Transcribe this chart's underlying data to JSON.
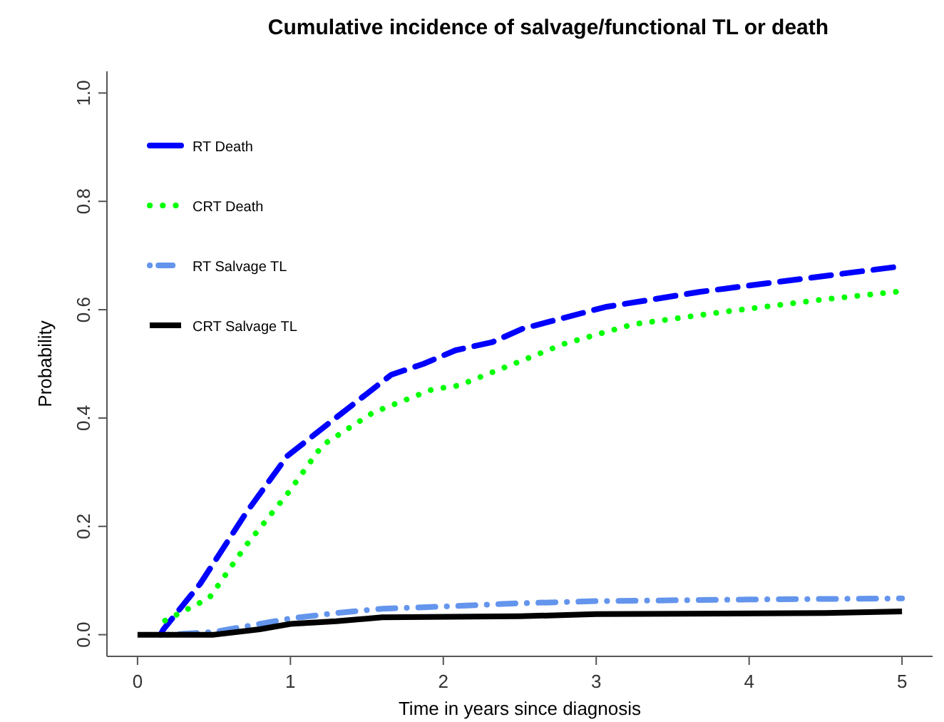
{
  "chart_data": {
    "type": "line",
    "title": "Cumulative incidence of salvage/functional TL or death",
    "xlabel": "Time in years since diagnosis",
    "ylabel": "Probability",
    "xlim": [
      -0.2,
      5.2
    ],
    "ylim": [
      -0.04,
      1.04
    ],
    "xticks": [
      0,
      1,
      2,
      3,
      4,
      5
    ],
    "yticks": [
      {
        "value": 0,
        "label": "0.0"
      },
      {
        "value": 0.2,
        "label": "0.2"
      },
      {
        "value": 0.4,
        "label": "0.4"
      },
      {
        "value": 0.6,
        "label": "0.6"
      },
      {
        "value": 0.8,
        "label": "0.8"
      },
      {
        "value": 1,
        "label": "1.0"
      }
    ],
    "grid": false,
    "legend": "top left",
    "series": [
      {
        "name": "RT Death",
        "color": "#0000ff",
        "line_style": "dashed",
        "x": [
          0.15,
          0.17,
          0.41,
          0.71,
          0.98,
          1.25,
          1.66,
          1.87,
          2.08,
          2.32,
          2.52,
          3.06,
          3.68,
          4.15,
          4.99
        ],
        "values": [
          0,
          0.01,
          0.094,
          0.225,
          0.33,
          0.39,
          0.48,
          0.5,
          0.525,
          0.54,
          0.565,
          0.605,
          0.633,
          0.65,
          0.68
        ]
      },
      {
        "name": "CRT Death",
        "color": "#00ff00",
        "line_style": "dotted",
        "x": [
          0.18,
          0.47,
          0.71,
          0.98,
          1.21,
          1.54,
          1.93,
          2.1,
          2.46,
          2.79,
          3.24,
          3.86,
          4.46,
          4.96
        ],
        "values": [
          0.026,
          0.068,
          0.165,
          0.26,
          0.35,
          0.41,
          0.453,
          0.46,
          0.5,
          0.537,
          0.573,
          0.597,
          0.618,
          0.633
        ]
      },
      {
        "name": "RT Salvage TL",
        "color": "#6495ed",
        "line_style": "dashdot",
        "x": [
          0.2,
          0.5,
          0.8,
          1,
          1.3,
          1.6,
          2,
          2.5,
          3,
          4,
          5
        ],
        "values": [
          0,
          0.005,
          0.02,
          0.03,
          0.04,
          0.048,
          0.052,
          0.058,
          0.062,
          0.065,
          0.067
        ]
      },
      {
        "name": "CRT Salvage TL",
        "color": "#000000",
        "line_style": "solid",
        "x": [
          0,
          0.5,
          0.8,
          1,
          1.3,
          1.6,
          2.5,
          3,
          4.5,
          5
        ],
        "values": [
          0,
          0,
          0.01,
          0.02,
          0.025,
          0.032,
          0.034,
          0.038,
          0.04,
          0.043
        ]
      }
    ]
  }
}
